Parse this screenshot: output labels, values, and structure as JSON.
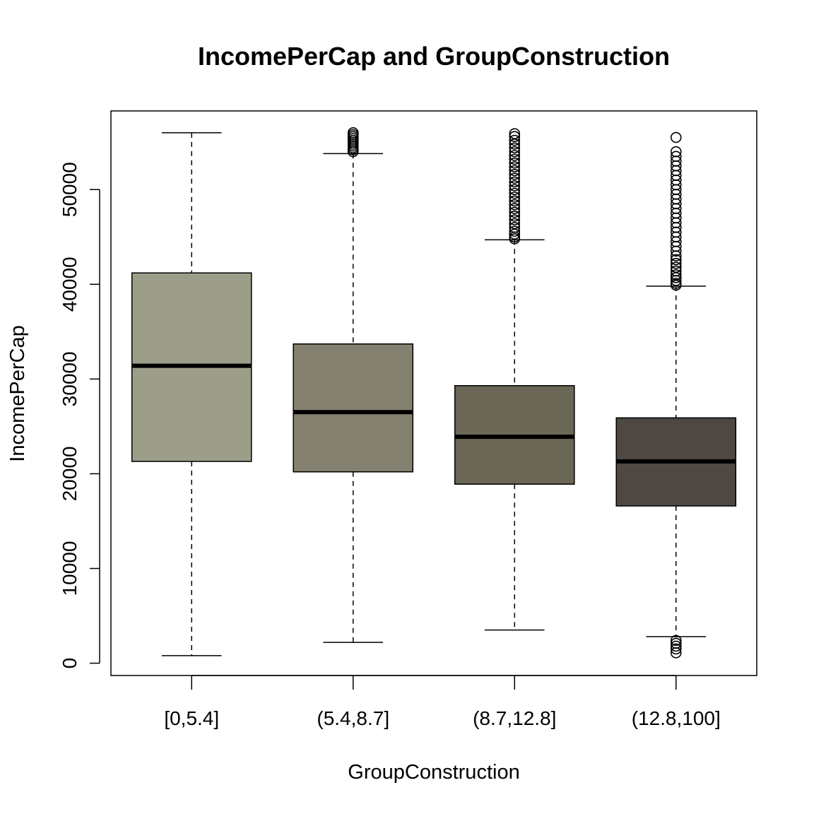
{
  "chart_data": {
    "type": "boxplot",
    "title": "IncomePerCap and GroupConstruction",
    "xlabel": "GroupConstruction",
    "ylabel": "IncomePerCap",
    "ylim": [
      -1300,
      58300
    ],
    "yticks": [
      0,
      10000,
      20000,
      30000,
      40000,
      50000
    ],
    "grid": false,
    "legend": "none",
    "categories": [
      "[0,5.4]",
      "(5.4,8.7]",
      "(8.7,12.8]",
      "(12.8,100]"
    ],
    "box_colors": [
      "#9c9e89",
      "#858170",
      "#6b6756",
      "#4d4841"
    ],
    "boxes": [
      {
        "whisker_low": 800,
        "q1": 21300,
        "median": 31400,
        "q3": 41200,
        "whisker_high": 56000,
        "outliers": []
      },
      {
        "whisker_low": 2200,
        "q1": 20200,
        "median": 26500,
        "q3": 33700,
        "whisker_high": 53800,
        "outliers": [
          54000,
          54200,
          54400,
          54600,
          54800,
          55000,
          55200,
          55400,
          55600,
          55800,
          56000
        ]
      },
      {
        "whisker_low": 3500,
        "q1": 18900,
        "median": 23900,
        "q3": 29300,
        "whisker_high": 44700,
        "outliers": [
          44800,
          45000,
          45300,
          45600,
          46000,
          46400,
          46800,
          47200,
          47600,
          48000,
          48400,
          48800,
          49200,
          49600,
          50000,
          50400,
          50800,
          51200,
          51600,
          52000,
          52400,
          52800,
          53200,
          53600,
          54000,
          54400,
          54800,
          55200,
          55600,
          55900
        ]
      },
      {
        "whisker_low": 2800,
        "q1": 16600,
        "median": 21300,
        "q3": 25900,
        "whisker_high": 39800,
        "outliers": [
          1100,
          1500,
          1800,
          2100,
          2400,
          39900,
          40100,
          40400,
          40700,
          41000,
          41400,
          41800,
          42200,
          42600,
          43000,
          43500,
          44000,
          44500,
          45000,
          45500,
          46000,
          46500,
          47000,
          47500,
          48000,
          48500,
          49000,
          49500,
          50000,
          50500,
          51000,
          51500,
          52000,
          52500,
          53000,
          53500,
          54000,
          55500
        ]
      }
    ]
  }
}
